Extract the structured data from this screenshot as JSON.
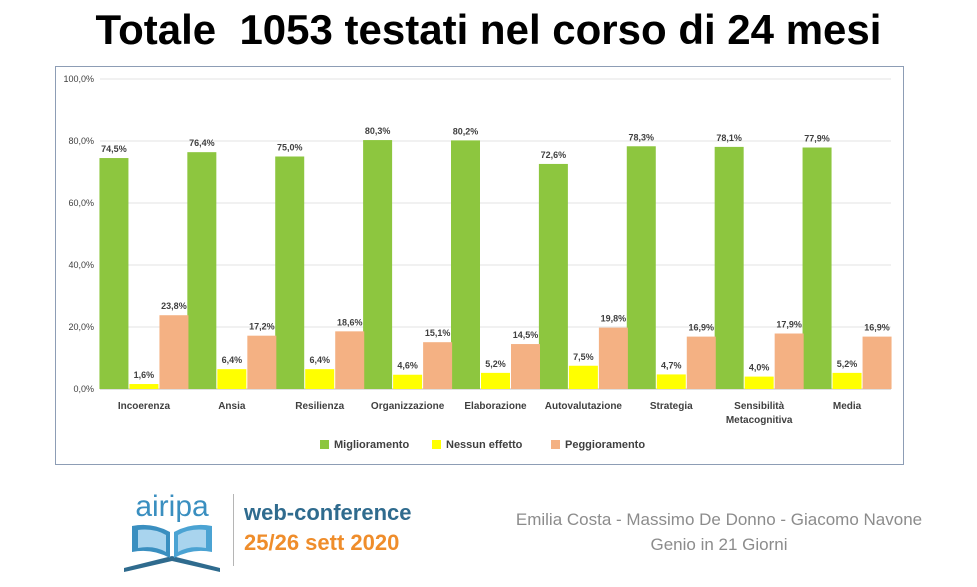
{
  "slide": {
    "title": "Totale  1053 testati nel corso di 24 mesi"
  },
  "chart_data": {
    "type": "bar",
    "title": "",
    "xlabel": "",
    "ylabel": "",
    "ylim": [
      0,
      100
    ],
    "yticks": [
      "0,0%",
      "20,0%",
      "40,0%",
      "60,0%",
      "80,0%",
      "100,0%"
    ],
    "grid": true,
    "legend_position": "bottom",
    "categories": [
      "Incoerenza",
      "Ansia",
      "Resilienza",
      "Organizzazione",
      "Elaborazione",
      "Autovalutazione",
      "Strategia",
      "Sensibilità Metacognitiva",
      "Media"
    ],
    "category_lines": [
      [
        "Incoerenza"
      ],
      [
        "Ansia"
      ],
      [
        "Resilienza"
      ],
      [
        "Organizzazione"
      ],
      [
        "Elaborazione"
      ],
      [
        "Autovalutazione"
      ],
      [
        "Strategia"
      ],
      [
        "Sensibilità",
        "Metacognitiva"
      ],
      [
        "Media"
      ]
    ],
    "series": [
      {
        "name": "Miglioramento",
        "color": "#8dc63f",
        "values": [
          74.5,
          76.4,
          75.0,
          80.3,
          80.2,
          72.6,
          78.3,
          78.1,
          77.9
        ],
        "labels": [
          "74,5%",
          "76,4%",
          "75,0%",
          "80,3%",
          "80,2%",
          "72,6%",
          "78,3%",
          "78,1%",
          "77,9%"
        ]
      },
      {
        "name": "Nessun effetto",
        "color": "#ffff00",
        "values": [
          1.6,
          6.4,
          6.4,
          4.6,
          5.2,
          7.5,
          4.7,
          4.0,
          5.2
        ],
        "labels": [
          "1,6%",
          "6,4%",
          "6,4%",
          "4,6%",
          "5,2%",
          "7,5%",
          "4,7%",
          "4,0%",
          "5,2%"
        ]
      },
      {
        "name": "Peggioramento",
        "color": "#f4b183",
        "values": [
          23.8,
          17.2,
          18.6,
          15.1,
          14.5,
          19.8,
          16.9,
          17.9,
          16.9
        ],
        "labels": [
          "23,8%",
          "17,2%",
          "18,6%",
          "15,1%",
          "14,5%",
          "19,8%",
          "16,9%",
          "17,9%",
          "16,9%"
        ]
      }
    ]
  },
  "footer": {
    "logo_text": "airipa",
    "event_line1": "web-conference",
    "event_line2": "25/26 sett 2020",
    "authors": "Emilia Costa - Massimo De Donno - Giacomo Navone",
    "project": "Genio in 21 Giorni",
    "colors": {
      "event_blue": "#2f6b8e",
      "event_orange": "#ef8d2b",
      "logo_blue": "#3a8fc0",
      "muted_gray": "#8c8c8c"
    }
  }
}
